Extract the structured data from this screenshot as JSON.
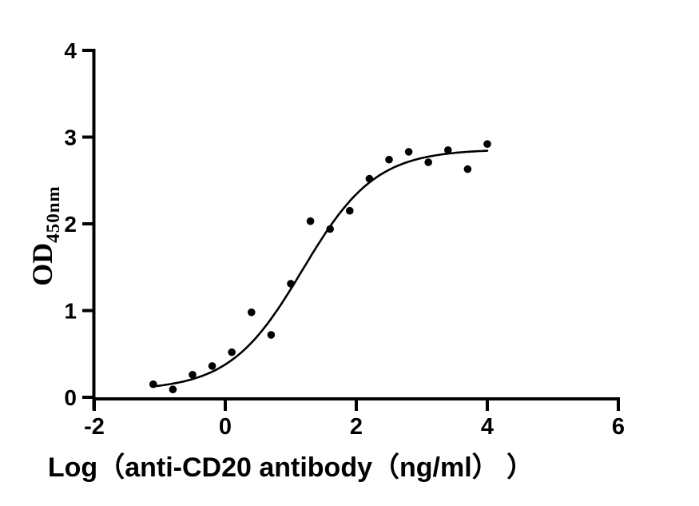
{
  "figure": {
    "background_color": "#ffffff",
    "axis_color": "#000000",
    "point_color": "#000000",
    "curve_color": "#000000"
  },
  "chart_data": {
    "type": "scatter",
    "title": "",
    "xlabel": "Log（anti-CD20 antibody（ng/ml） ）",
    "ylabel": "OD",
    "ylabel_subscript": "450nm",
    "xlim": [
      -2,
      6
    ],
    "ylim": [
      0,
      4
    ],
    "xticks": [
      -2,
      0,
      2,
      4,
      6
    ],
    "yticks": [
      0,
      1,
      2,
      3,
      4
    ],
    "grid": false,
    "legend": null,
    "points": {
      "x": [
        -1.1,
        -0.8,
        -0.5,
        -0.2,
        0.1,
        0.4,
        0.7,
        1.0,
        1.3,
        1.6,
        1.9,
        2.2,
        2.5,
        2.8,
        3.1,
        3.4,
        3.7,
        4.0
      ],
      "y": [
        0.15,
        0.09,
        0.26,
        0.36,
        0.52,
        0.98,
        0.72,
        1.31,
        2.03,
        1.94,
        2.15,
        2.52,
        2.74,
        2.83,
        2.71,
        2.85,
        2.63,
        2.92
      ]
    },
    "fit_curve": {
      "model": "four_parameter_logistic",
      "bottom": 0.08,
      "top": 2.86,
      "logEC50": 1.18,
      "hillslope": 0.78,
      "x_range": [
        -1.12,
        4.03
      ]
    }
  }
}
